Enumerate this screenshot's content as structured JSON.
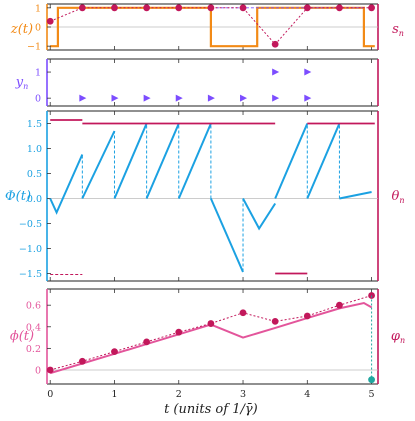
{
  "colors": {
    "orange": "#f28a16",
    "crimson": "#c2185b",
    "purple": "#7c4dff",
    "blue": "#1ba1e2",
    "pink": "#e3559b",
    "teal": "#22a7a0",
    "frame_left_top": "#f28a16",
    "frame_left_mid": "#7c4dff",
    "frame_left_phi": "#1ba1e2",
    "frame_left_bottom": "#e3559b",
    "frame_right": "#c2185b"
  },
  "chart_data": [
    {
      "type": "line",
      "panel": "z",
      "ylabel": "z(t)",
      "ylabel_right": "s_n",
      "yticks": [
        "1",
        "0",
        "−1"
      ],
      "ylim": [
        -1.2,
        1.2
      ],
      "xlim": [
        -0.05,
        5.1
      ],
      "step": [
        [
          0,
          -1
        ],
        [
          0.12,
          -1
        ],
        [
          0.12,
          1
        ],
        [
          2.5,
          1
        ],
        [
          2.5,
          -1
        ],
        [
          3.22,
          -1
        ],
        [
          3.22,
          1
        ],
        [
          4.88,
          1
        ],
        [
          4.88,
          -1
        ],
        [
          5.05,
          -1
        ]
      ],
      "points_x": [
        0,
        0.5,
        1,
        1.5,
        2,
        2.5,
        3,
        3.5,
        4,
        4.5,
        5
      ],
      "points_y": [
        0.3,
        1,
        1,
        1,
        1,
        1,
        1,
        -0.9,
        1,
        1,
        1
      ],
      "dashed_line": [
        [
          2.5,
          1
        ],
        [
          4.88,
          1
        ]
      ]
    },
    {
      "type": "scatter",
      "panel": "y",
      "ylabel": "y_n",
      "yticks": [
        "1",
        "0"
      ],
      "ylim": [
        -0.3,
        1.5
      ],
      "x": [
        0.5,
        1,
        1.5,
        2,
        2.5,
        3,
        3.5,
        4,
        3.5,
        4
      ],
      "y": [
        0,
        0,
        0,
        0,
        0,
        0,
        0,
        0,
        1,
        1
      ]
    },
    {
      "type": "line",
      "panel": "phi",
      "ylabel": "Φ(t)",
      "ylabel_right": "θ_n",
      "yticks": [
        "1.5",
        "1.0",
        "0.5",
        "0.0",
        "−0.5",
        "−1.0",
        "−1.5"
      ],
      "ylim": [
        -1.65,
        1.75
      ],
      "sawtooth": [
        [
          0,
          0
        ],
        [
          0.1,
          -0.28
        ],
        [
          0.5,
          0.88
        ],
        [
          0.5,
          0
        ],
        [
          1,
          1.35
        ],
        [
          1,
          0
        ],
        [
          1.5,
          1.5
        ],
        [
          1.5,
          0
        ],
        [
          2,
          1.5
        ],
        [
          2,
          0
        ],
        [
          2.5,
          1.5
        ],
        [
          2.5,
          0
        ],
        [
          3,
          -1.47
        ],
        [
          3,
          0
        ],
        [
          3.25,
          -0.6
        ],
        [
          3.5,
          -0.1
        ],
        [
          3.5,
          0
        ],
        [
          4,
          1.5
        ],
        [
          4,
          0
        ],
        [
          4.5,
          1.5
        ],
        [
          4.5,
          0
        ],
        [
          5,
          0.13
        ]
      ],
      "dashed_verticals": [
        [
          0.5,
          0,
          0.88
        ],
        [
          1,
          0,
          1.35
        ],
        [
          1.5,
          0,
          1.5
        ],
        [
          2,
          0,
          1.5
        ],
        [
          2.5,
          0,
          1.5
        ],
        [
          3,
          0,
          -1.47
        ],
        [
          4,
          0,
          1.5
        ],
        [
          4.5,
          0,
          1.5
        ]
      ],
      "theta_segments": [
        [
          0,
          0.5,
          1.57
        ],
        [
          0.5,
          3.5,
          1.5
        ],
        [
          3.5,
          4.0,
          -1.5
        ],
        [
          4.0,
          5.05,
          1.5
        ]
      ],
      "theta_dashed": [
        [
          0,
          0.5,
          -1.52
        ]
      ]
    },
    {
      "type": "line",
      "panel": "phi_small",
      "ylabel": "ϕ(t)",
      "ylabel_right": "φ_n",
      "xlabel": "t (units of 1/γ̄)",
      "xticks": [
        "0",
        "1",
        "2",
        "3",
        "4",
        "5"
      ],
      "yticks": [
        "0.6",
        "0.4",
        "0.2",
        "0"
      ],
      "ylim": [
        -0.13,
        0.75
      ],
      "xlim": [
        -0.05,
        5.1
      ],
      "curve": [
        [
          0,
          -0.03
        ],
        [
          0.5,
          0.06
        ],
        [
          1,
          0.15
        ],
        [
          1.5,
          0.24
        ],
        [
          2,
          0.33
        ],
        [
          2.5,
          0.42
        ],
        [
          3,
          0.3
        ],
        [
          3.5,
          0.39
        ],
        [
          4,
          0.48
        ],
        [
          4.5,
          0.57
        ],
        [
          4.88,
          0.62
        ],
        [
          5,
          0.58
        ]
      ],
      "points_x": [
        0,
        0.5,
        1,
        1.5,
        2,
        2.5,
        3,
        3.5,
        4,
        4.5,
        5
      ],
      "points_y": [
        0,
        0.08,
        0.17,
        0.26,
        0.35,
        0.43,
        0.53,
        0.45,
        0.5,
        0.6,
        0.69
      ],
      "teal_point": [
        5,
        -0.09
      ],
      "teal_dashed": [
        [
          5,
          0.69
        ],
        [
          5,
          -0.09
        ]
      ]
    }
  ]
}
